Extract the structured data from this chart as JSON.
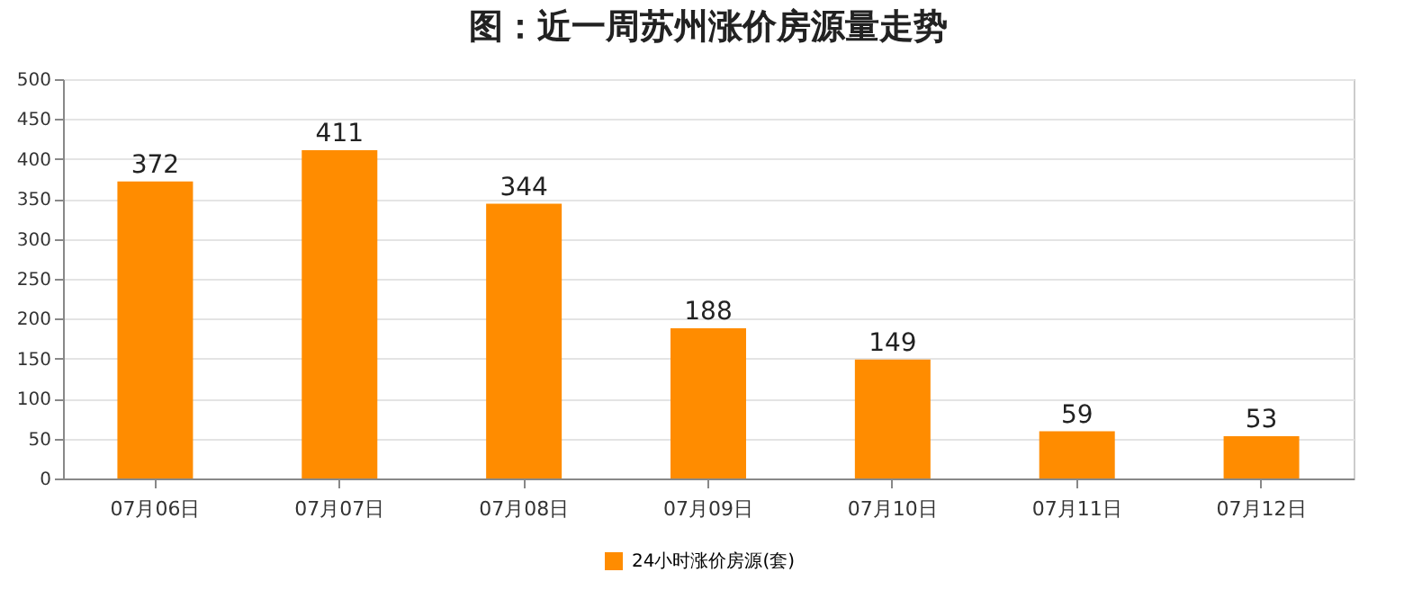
{
  "chart_data": {
    "type": "bar",
    "title": "图：近一周苏州涨价房源量走势",
    "categories": [
      "07月06日",
      "07月07日",
      "07月08日",
      "07月09日",
      "07月10日",
      "07月11日",
      "07月12日"
    ],
    "series": [
      {
        "name": "24小时涨价房源(套)",
        "color": "#ff8c00",
        "values": [
          372,
          411,
          344,
          188,
          149,
          59,
          53
        ]
      }
    ],
    "ylim": [
      0,
      500
    ],
    "yticks": [
      0,
      50,
      100,
      150,
      200,
      250,
      300,
      350,
      400,
      450,
      500
    ],
    "grid": "y",
    "legend": "bottom",
    "data_labels": true
  }
}
